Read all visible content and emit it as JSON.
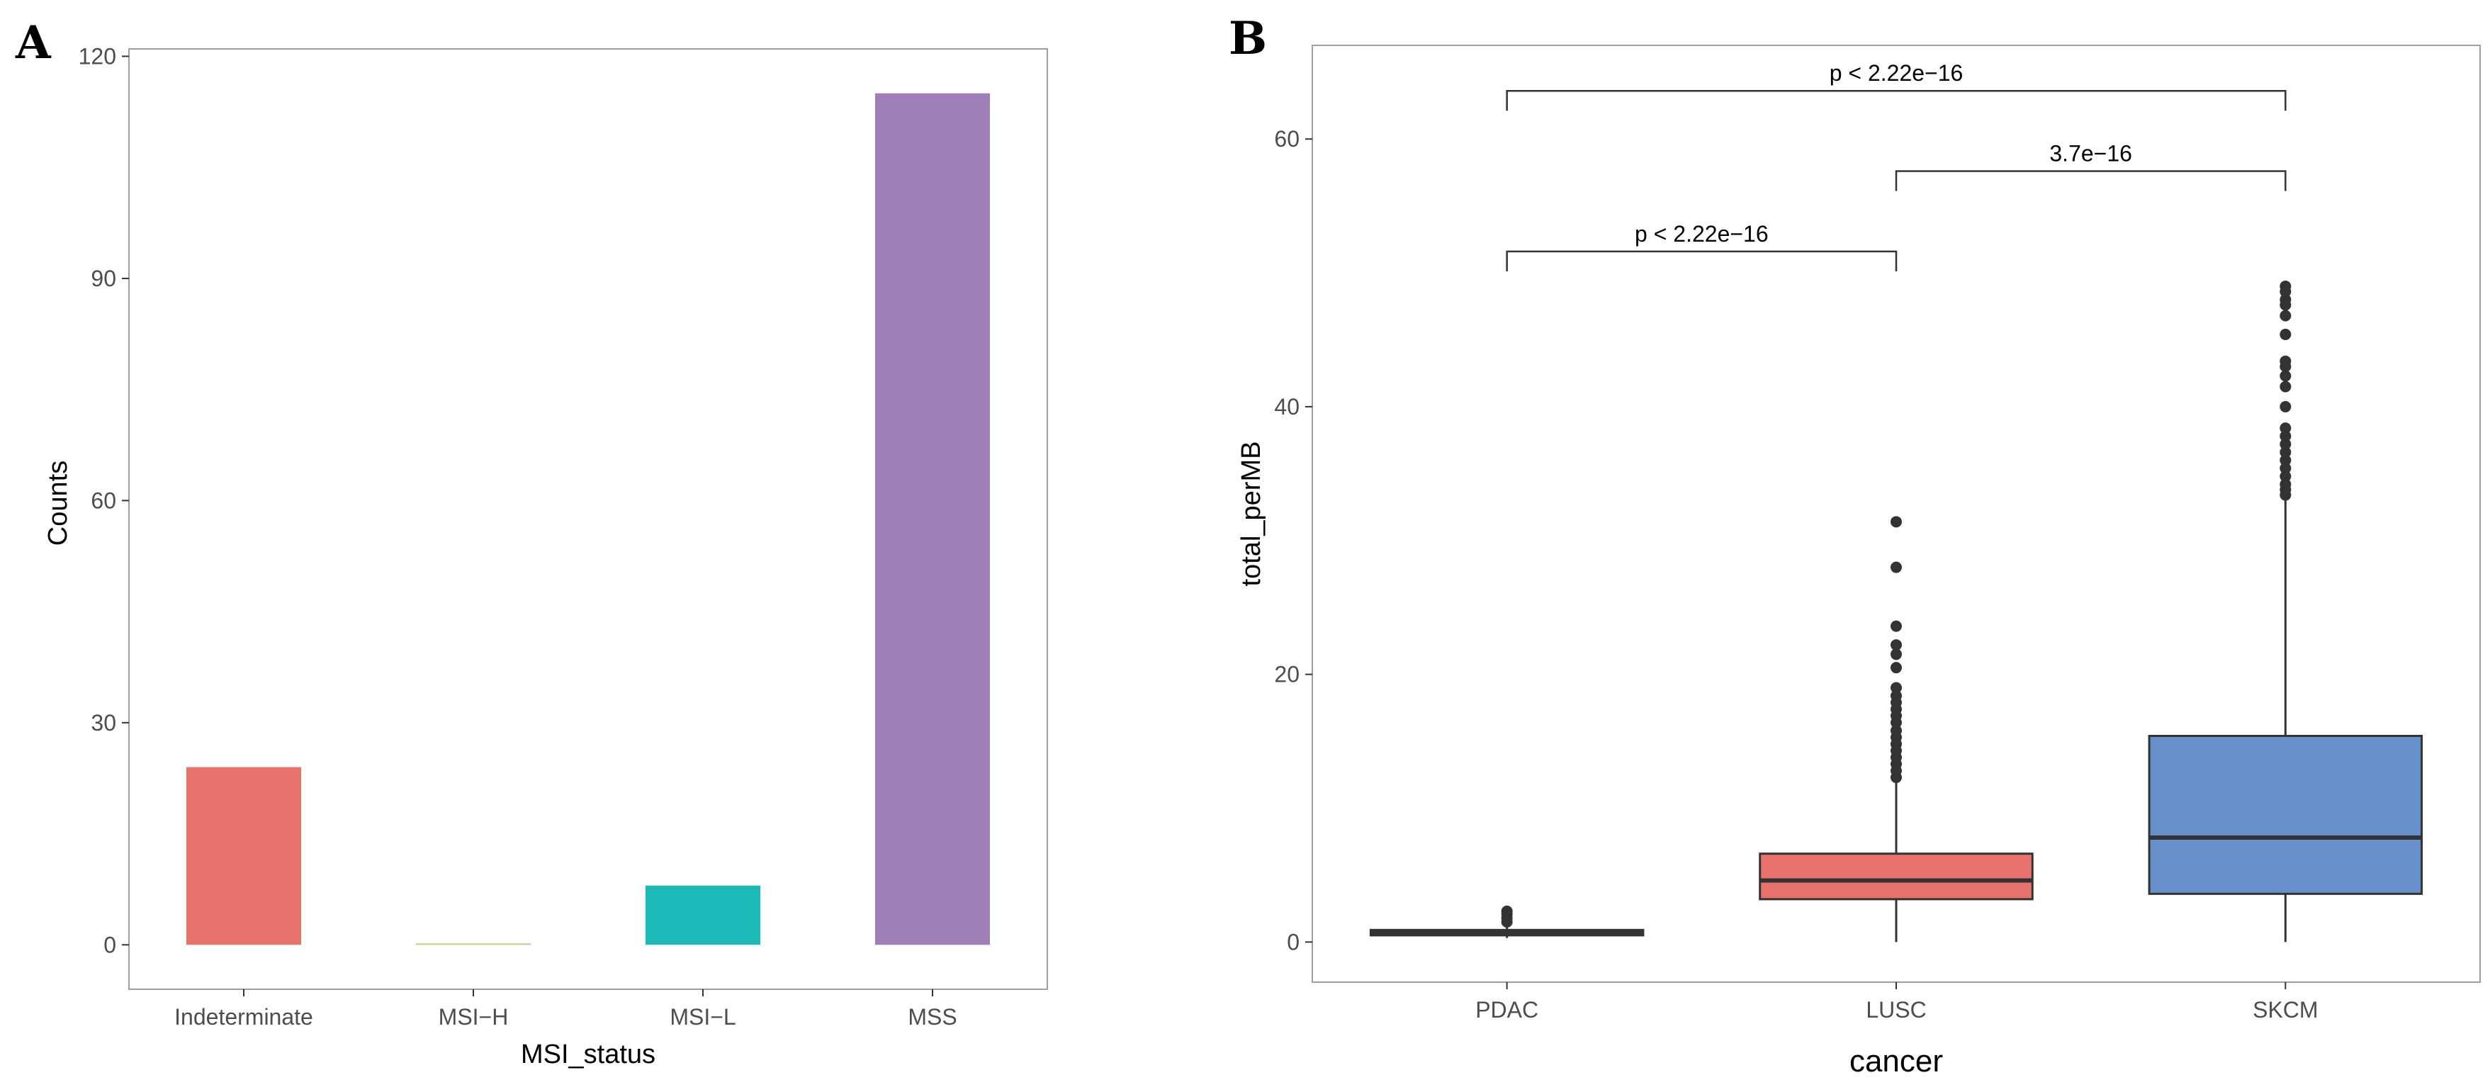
{
  "chart_data": [
    {
      "panel": "A",
      "type": "bar",
      "title": "",
      "xlabel": "MSI_status",
      "ylabel": "Counts",
      "categories": [
        "Indeterminate",
        "MSI−H",
        "MSI−L",
        "MSS"
      ],
      "values": [
        24,
        0,
        8,
        115
      ],
      "colors": [
        "#E8736C",
        "#C9C78A",
        "#1DB8B8",
        "#9E7FB8"
      ],
      "yticks": [
        0,
        30,
        60,
        90,
        120
      ],
      "ytick_labels": [
        "0",
        "30",
        "60",
        "90",
        "120"
      ],
      "ylim": [
        -6,
        121
      ],
      "grid": false
    },
    {
      "panel": "B",
      "type": "box",
      "title": "",
      "xlabel": "cancer",
      "ylabel": "total_perMB",
      "categories": [
        "PDAC",
        "LUSC",
        "SKCM"
      ],
      "colors": [
        "#E8736C",
        "#E8736C",
        "#6790CB"
      ],
      "boxes": [
        {
          "name": "PDAC",
          "min": 0.3,
          "q1": 0.5,
          "median": 0.7,
          "q3": 0.9,
          "max": 1.2,
          "outliers": [
            1.5,
            1.8,
            2.1,
            2.3
          ]
        },
        {
          "name": "LUSC",
          "min": 0.0,
          "q1": 3.2,
          "median": 4.6,
          "q3": 6.6,
          "max": 12.0,
          "outliers": [
            12.3,
            12.8,
            13.3,
            13.8,
            14.3,
            14.8,
            15.3,
            15.8,
            16.4,
            16.9,
            17.4,
            17.9,
            18.4,
            19.0,
            20.5,
            21.5,
            22.2,
            23.6,
            28.0,
            31.4
          ]
        },
        {
          "name": "SKCM",
          "min": 0.0,
          "q1": 3.6,
          "median": 7.8,
          "q3": 15.4,
          "max": 33.2,
          "outliers": [
            33.4,
            33.8,
            34.2,
            34.8,
            35.4,
            36.0,
            36.6,
            37.2,
            37.8,
            38.4,
            40.0,
            41.5,
            42.3,
            43.0,
            43.4,
            45.4,
            46.8,
            47.6,
            48.0,
            48.6,
            49.0
          ]
        }
      ],
      "comparisons": [
        {
          "from": "PDAC",
          "to": "LUSC",
          "y": 51.6,
          "label": "p < 2.22e−16"
        },
        {
          "from": "LUSC",
          "to": "SKCM",
          "y": 57.6,
          "label": "3.7e−16"
        },
        {
          "from": "PDAC",
          "to": "SKCM",
          "y": 63.6,
          "label": "p < 2.22e−16"
        }
      ],
      "yticks": [
        0,
        20,
        40,
        60
      ],
      "ytick_labels": [
        "0",
        "20",
        "40",
        "60"
      ],
      "ylim": [
        -3,
        67
      ],
      "grid": false
    }
  ]
}
